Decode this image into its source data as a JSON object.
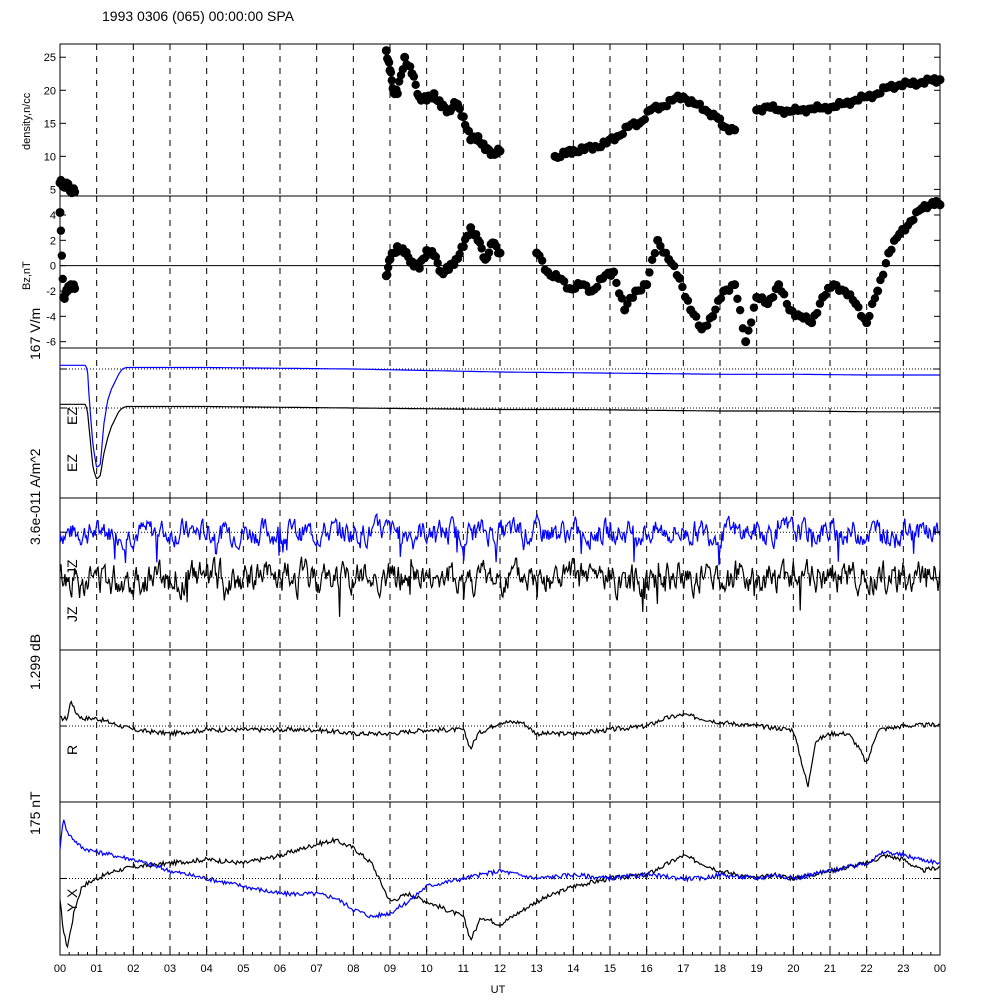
{
  "title": "1993 0306 (065) 00:00:00 SPA",
  "colors": {
    "black": "#000000",
    "blue": "#0000ff",
    "axis": "#000000"
  },
  "chart_data": [
    {
      "type": "scatter",
      "panel": "density",
      "ylabel": "density,n/cc",
      "ylim": [
        4,
        27
      ],
      "yticks": [
        5,
        10,
        15,
        20,
        25
      ],
      "x": [
        0.0,
        0.1,
        0.2,
        0.3,
        0.4,
        8.9,
        9.0,
        9.1,
        9.2,
        9.4,
        9.6,
        9.8,
        10.0,
        10.2,
        10.4,
        10.6,
        10.8,
        11.0,
        11.2,
        11.4,
        11.6,
        11.8,
        12.0,
        13.5,
        13.8,
        14.0,
        14.3,
        14.6,
        14.9,
        15.2,
        15.5,
        15.8,
        16.1,
        16.4,
        16.7,
        17.0,
        17.3,
        17.6,
        17.9,
        18.1,
        18.4,
        19.0,
        19.3,
        19.6,
        19.9,
        20.2,
        20.5,
        20.8,
        21.1,
        21.4,
        21.7,
        22.0,
        22.3,
        22.6,
        22.9,
        23.2,
        23.5,
        23.8,
        24.0
      ],
      "values": [
        6.0,
        5.8,
        5.5,
        5.0,
        4.6,
        26.0,
        23.0,
        20.0,
        19.5,
        25.0,
        22.5,
        19.0,
        18.5,
        19.5,
        17.5,
        17.0,
        18.0,
        16.0,
        12.5,
        13.0,
        11.0,
        10.5,
        10.8,
        10.0,
        10.4,
        10.9,
        11.0,
        11.5,
        12.0,
        13.0,
        14.5,
        15.0,
        17.0,
        17.5,
        18.5,
        19.0,
        18.0,
        17.0,
        16.0,
        14.5,
        14.0,
        17.0,
        17.5,
        17.0,
        16.8,
        17.0,
        17.2,
        17.3,
        17.5,
        18.0,
        18.5,
        19.0,
        19.5,
        20.5,
        20.8,
        21.0,
        21.2,
        21.5,
        21.6
      ]
    },
    {
      "type": "scatter",
      "panel": "bz",
      "ylabel": "Bz,nT",
      "ylim": [
        -6.5,
        5.5
      ],
      "yticks": [
        -6,
        -4,
        -2,
        0,
        2,
        4
      ],
      "x": [
        0.0,
        0.1,
        0.2,
        0.3,
        0.4,
        8.9,
        9.0,
        9.2,
        9.4,
        9.6,
        9.8,
        10.0,
        10.2,
        10.4,
        10.6,
        10.8,
        11.0,
        11.2,
        11.4,
        11.6,
        11.8,
        12.0,
        13.0,
        13.3,
        13.6,
        13.9,
        14.2,
        14.5,
        14.8,
        15.1,
        15.4,
        15.7,
        16.0,
        16.3,
        16.6,
        16.9,
        17.2,
        17.5,
        17.8,
        18.1,
        18.4,
        18.7,
        19.0,
        19.3,
        19.6,
        19.9,
        20.2,
        20.5,
        20.8,
        21.1,
        21.4,
        21.7,
        22.0,
        22.3,
        22.6,
        22.9,
        23.2,
        23.5,
        23.8,
        24.0
      ],
      "values": [
        4.2,
        -2.5,
        -2.0,
        -1.5,
        -1.8,
        -0.8,
        0.5,
        1.5,
        1.0,
        0.3,
        -0.2,
        1.2,
        0.8,
        -0.5,
        -0.3,
        0.5,
        1.5,
        3.0,
        2.0,
        0.5,
        1.8,
        1.0,
        1.0,
        -0.5,
        -1.0,
        -1.8,
        -1.5,
        -2.0,
        -1.0,
        -0.5,
        -3.5,
        -2.0,
        -1.5,
        2.0,
        0.5,
        -1.0,
        -3.5,
        -5.0,
        -4.0,
        -2.0,
        -1.5,
        -6.0,
        -2.5,
        -3.0,
        -1.5,
        -3.5,
        -4.0,
        -4.5,
        -2.5,
        -1.5,
        -2.0,
        -3.0,
        -4.5,
        -2.0,
        1.0,
        2.5,
        3.5,
        4.5,
        5.0,
        4.8
      ]
    },
    {
      "type": "line",
      "panel": "ez",
      "scale_label": "167 V/m",
      "series": [
        {
          "name": "EZ",
          "color": "#0000ff",
          "baseline": 0.72,
          "x": [
            0,
            0.7,
            0.75,
            0.8,
            0.9,
            1.0,
            1.1,
            1.2,
            1.3,
            1.4,
            1.5,
            1.6,
            1.7,
            1.8,
            2,
            4,
            6,
            8,
            10,
            12,
            14,
            16,
            18,
            20,
            22,
            24
          ],
          "values": [
            0.77,
            0.77,
            0.7,
            0.3,
            -0.3,
            -0.6,
            -0.55,
            0.0,
            0.3,
            0.45,
            0.55,
            0.65,
            0.72,
            0.74,
            0.74,
            0.74,
            0.73,
            0.72,
            0.7,
            0.68,
            0.67,
            0.66,
            0.65,
            0.65,
            0.64,
            0.64
          ]
        },
        {
          "name": "EZ",
          "color": "#000000",
          "baseline": 0.2,
          "x": [
            0,
            0.7,
            0.75,
            0.8,
            0.9,
            1.0,
            1.1,
            1.2,
            1.3,
            1.4,
            1.5,
            1.6,
            1.7,
            1.8,
            2,
            4,
            6,
            8,
            10,
            12,
            14,
            16,
            18,
            20,
            22,
            24
          ],
          "values": [
            0.25,
            0.25,
            0.15,
            -0.1,
            -0.6,
            -0.75,
            -0.7,
            -0.4,
            -0.2,
            -0.05,
            0.05,
            0.15,
            0.2,
            0.22,
            0.22,
            0.22,
            0.21,
            0.2,
            0.19,
            0.18,
            0.18,
            0.17,
            0.16,
            0.16,
            0.15,
            0.15
          ]
        }
      ]
    },
    {
      "type": "line",
      "panel": "jz",
      "scale_label": "3.6e-011 A/m^2",
      "series": [
        {
          "name": "JZ",
          "color": "#0000ff",
          "baseline": 0.55,
          "amplitude": 0.28,
          "seed": 7
        },
        {
          "name": "JZ",
          "color": "#000000",
          "baseline": -0.05,
          "amplitude": 0.36,
          "seed": 13
        }
      ]
    },
    {
      "type": "line",
      "panel": "r",
      "scale_label": "1.299 dB",
      "series": [
        {
          "name": "R",
          "color": "#000000",
          "baseline": 0.0,
          "x": [
            0,
            0.2,
            0.3,
            0.4,
            0.6,
            1,
            2,
            3,
            4,
            5,
            6,
            7,
            8,
            9,
            10,
            11,
            11.2,
            11.4,
            12,
            12.6,
            13,
            14,
            15,
            16,
            16.5,
            17,
            17.5,
            18,
            19,
            20,
            20.4,
            20.6,
            21,
            21.5,
            21.8,
            22,
            22.3,
            23,
            24
          ],
          "values": [
            0.1,
            0.1,
            0.35,
            0.2,
            0.1,
            0.1,
            -0.05,
            -0.1,
            -0.05,
            -0.05,
            -0.05,
            -0.05,
            -0.1,
            -0.1,
            -0.05,
            -0.05,
            -0.3,
            -0.1,
            0.05,
            0.05,
            -0.1,
            -0.1,
            -0.05,
            0.0,
            0.1,
            0.15,
            0.1,
            0.05,
            0.0,
            -0.05,
            -0.8,
            -0.2,
            -0.1,
            -0.1,
            -0.3,
            -0.5,
            -0.05,
            0.0,
            0.02
          ]
        }
      ]
    },
    {
      "type": "line",
      "panel": "xy",
      "scale_label": "175 nT",
      "xlabel": "UT",
      "series": [
        {
          "name": "X",
          "color": "#000000",
          "baseline": 0.0,
          "x": [
            0,
            0.1,
            0.2,
            0.4,
            0.6,
            1,
            1.5,
            2,
            3,
            4,
            5,
            6,
            7,
            7.5,
            8,
            8.5,
            9,
            9.5,
            10,
            10.5,
            11,
            11.2,
            11.5,
            12,
            13,
            14,
            15,
            16,
            17,
            17.5,
            18,
            19,
            19.5,
            20,
            21,
            22,
            22.5,
            23,
            23.5,
            24
          ],
          "values": [
            -0.3,
            -0.7,
            -0.9,
            -0.4,
            -0.1,
            0.0,
            0.1,
            0.15,
            0.2,
            0.25,
            0.2,
            0.3,
            0.45,
            0.5,
            0.4,
            0.2,
            -0.3,
            -0.2,
            -0.3,
            -0.4,
            -0.5,
            -0.8,
            -0.5,
            -0.6,
            -0.3,
            -0.1,
            0.0,
            0.05,
            0.3,
            0.2,
            0.1,
            0.0,
            0.05,
            0.0,
            0.1,
            0.2,
            0.3,
            0.25,
            0.1,
            0.15
          ]
        },
        {
          "name": "Y",
          "color": "#0000ff",
          "baseline": 0.0,
          "x": [
            0,
            0.1,
            0.2,
            0.4,
            0.6,
            1,
            1.5,
            2,
            3,
            4,
            5,
            6,
            7,
            7.5,
            8,
            8.5,
            9,
            9.5,
            10,
            10.5,
            11,
            11.5,
            12,
            13,
            14,
            15,
            16,
            17,
            17.5,
            18,
            19,
            19.5,
            20,
            21,
            22,
            22.5,
            23,
            23.5,
            24
          ],
          "values": [
            0.4,
            0.8,
            0.6,
            0.5,
            0.4,
            0.35,
            0.3,
            0.25,
            0.1,
            0.0,
            -0.1,
            -0.2,
            -0.2,
            -0.25,
            -0.4,
            -0.5,
            -0.45,
            -0.3,
            -0.1,
            -0.05,
            0.0,
            0.05,
            0.1,
            0.0,
            0.05,
            0.0,
            0.05,
            0.0,
            0.0,
            0.05,
            0.0,
            0.05,
            0.0,
            0.1,
            0.2,
            0.35,
            0.3,
            0.25,
            0.2
          ]
        }
      ]
    }
  ],
  "xaxis": {
    "label": "UT",
    "range": [
      0,
      24
    ],
    "ticks": [
      "00",
      "01",
      "02",
      "03",
      "04",
      "05",
      "06",
      "07",
      "08",
      "09",
      "10",
      "11",
      "12",
      "13",
      "14",
      "15",
      "16",
      "17",
      "18",
      "19",
      "20",
      "21",
      "22",
      "23",
      "00"
    ]
  },
  "labels": {
    "density_y": "density,n/cc",
    "bz_y": "Bz,nT",
    "ez_scale": "167 V/m",
    "jz_scale": "3.6e-011 A/m^2",
    "r_scale": "1.299 dB",
    "xy_scale": "175 nT",
    "ez_blue": "EZ",
    "ez_black": "EZ",
    "jz_blue": "JZ",
    "jz_black": "JZ",
    "r_label": "R",
    "x_label": "X",
    "y_label": "Y"
  }
}
